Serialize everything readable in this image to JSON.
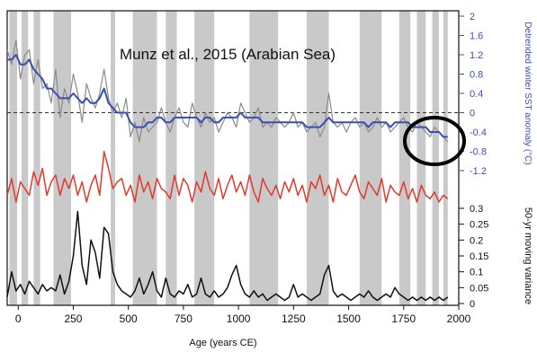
{
  "chart_data": {
    "type": "line",
    "annotation": "Munz et al., 2015  (Arabian Sea)",
    "xlabel": "Age (years CE)",
    "xlim": [
      -50,
      2000
    ],
    "xticks": [
      0,
      250,
      500,
      750,
      1000,
      1250,
      1500,
      1750,
      2000
    ],
    "shaded_intervals": [
      [
        -40,
        -5
      ],
      [
        15,
        45
      ],
      [
        70,
        100
      ],
      [
        160,
        240
      ],
      [
        420,
        440
      ],
      [
        520,
        630
      ],
      [
        670,
        720
      ],
      [
        800,
        890
      ],
      [
        1050,
        1180
      ],
      [
        1310,
        1410
      ],
      [
        1550,
        1650
      ],
      [
        1730,
        1780
      ],
      [
        1810,
        1850
      ],
      [
        1880,
        1910
      ],
      [
        1930,
        1950
      ]
    ],
    "y_right_top": {
      "label": "Detrended winter SST anomaly (°C)",
      "ylim": [
        -1.2,
        2
      ],
      "ticks": [
        "2",
        "1.6",
        "1.2",
        "0.8",
        "0.4",
        "0",
        "-0.4",
        "-0.8",
        "-1.2"
      ],
      "zero_dashed": true
    },
    "y_right_bottom": {
      "label": "50-yr moving variance",
      "ylim": [
        0,
        0.3
      ],
      "ticks": [
        "0.3",
        "0.25",
        "0.2",
        "0.15",
        "0.1",
        "0.05",
        "0"
      ]
    },
    "series": [
      {
        "role": "sst_raw",
        "color": "#8a8a8a",
        "x": [
          -50,
          -30,
          -10,
          10,
          30,
          50,
          70,
          90,
          110,
          130,
          150,
          170,
          190,
          210,
          230,
          250,
          270,
          290,
          310,
          330,
          350,
          370,
          390,
          410,
          430,
          450,
          470,
          490,
          510,
          530,
          550,
          570,
          590,
          610,
          630,
          650,
          670,
          690,
          710,
          730,
          750,
          770,
          790,
          810,
          830,
          850,
          870,
          890,
          910,
          930,
          950,
          970,
          990,
          1010,
          1030,
          1050,
          1070,
          1090,
          1110,
          1130,
          1150,
          1170,
          1190,
          1210,
          1230,
          1250,
          1270,
          1290,
          1310,
          1330,
          1350,
          1370,
          1390,
          1410,
          1430,
          1450,
          1470,
          1490,
          1510,
          1530,
          1550,
          1570,
          1590,
          1610,
          1630,
          1650,
          1670,
          1690,
          1710,
          1730,
          1750,
          1770,
          1790,
          1810,
          1830,
          1850,
          1870,
          1890,
          1910,
          1930,
          1950
        ],
        "y": [
          1.3,
          1.0,
          1.5,
          0.7,
          1.2,
          1.3,
          0.6,
          1.1,
          0.5,
          0.6,
          0.2,
          0.9,
          -0.1,
          0.5,
          0.2,
          0.8,
          0.4,
          -0.2,
          0.6,
          0.3,
          0.1,
          0.4,
          0.9,
          0.3,
          0.0,
          0.2,
          -0.1,
          0.3,
          -0.5,
          -0.2,
          -0.6,
          -0.1,
          -0.4,
          -0.3,
          -0.2,
          0.1,
          -0.2,
          -0.4,
          -0.1,
          0.1,
          -0.2,
          -0.3,
          0.2,
          -0.1,
          -0.3,
          0.0,
          -0.2,
          -0.1,
          -0.4,
          -0.2,
          0.0,
          -0.1,
          -0.3,
          0.2,
          0.0,
          -0.2,
          -0.1,
          0.1,
          -0.3,
          -0.2,
          -0.3,
          -0.1,
          -0.2,
          -0.3,
          -0.2,
          0.0,
          -0.3,
          -0.2,
          -0.4,
          -0.3,
          -0.2,
          -0.5,
          -0.3,
          0.4,
          -0.2,
          -0.3,
          -0.2,
          -0.4,
          -0.2,
          -0.1,
          -0.3,
          -0.2,
          -0.4,
          -0.3,
          -0.1,
          -0.3,
          -0.2,
          -0.4,
          -0.3,
          -0.2,
          -0.1,
          -0.3,
          -0.4,
          -0.2,
          -0.3,
          -0.4,
          -0.5,
          -0.3,
          -0.4,
          -0.5,
          -0.6
        ]
      },
      {
        "role": "sst_smoothed",
        "color": "#3b4fb0",
        "x": [
          -50,
          -30,
          -10,
          10,
          30,
          50,
          70,
          90,
          110,
          130,
          150,
          170,
          190,
          210,
          230,
          250,
          270,
          290,
          310,
          330,
          350,
          370,
          390,
          410,
          430,
          450,
          470,
          490,
          510,
          530,
          550,
          570,
          590,
          610,
          630,
          650,
          670,
          690,
          710,
          730,
          750,
          770,
          790,
          810,
          830,
          850,
          870,
          890,
          910,
          930,
          950,
          970,
          990,
          1010,
          1030,
          1050,
          1070,
          1090,
          1110,
          1130,
          1150,
          1170,
          1190,
          1210,
          1230,
          1250,
          1270,
          1290,
          1310,
          1330,
          1350,
          1370,
          1390,
          1410,
          1430,
          1450,
          1470,
          1490,
          1510,
          1530,
          1550,
          1570,
          1590,
          1610,
          1630,
          1650,
          1670,
          1690,
          1710,
          1730,
          1750,
          1770,
          1790,
          1810,
          1830,
          1850,
          1870,
          1890,
          1910,
          1930,
          1950
        ],
        "y": [
          1.1,
          1.1,
          1.2,
          1.0,
          1.0,
          1.1,
          0.9,
          0.8,
          0.7,
          0.5,
          0.5,
          0.4,
          0.3,
          0.3,
          0.3,
          0.4,
          0.3,
          0.2,
          0.3,
          0.2,
          0.2,
          0.3,
          0.5,
          0.2,
          0.1,
          0.0,
          0.0,
          0.0,
          -0.2,
          -0.3,
          -0.3,
          -0.3,
          -0.2,
          -0.2,
          -0.1,
          -0.1,
          -0.2,
          -0.2,
          -0.1,
          -0.1,
          -0.1,
          -0.1,
          -0.1,
          -0.1,
          -0.2,
          -0.1,
          -0.1,
          -0.2,
          -0.2,
          -0.1,
          -0.1,
          -0.1,
          -0.1,
          0.0,
          -0.1,
          -0.1,
          -0.1,
          -0.1,
          -0.2,
          -0.2,
          -0.2,
          -0.2,
          -0.2,
          -0.2,
          -0.2,
          -0.2,
          -0.2,
          -0.2,
          -0.3,
          -0.3,
          -0.3,
          -0.3,
          -0.2,
          -0.1,
          -0.2,
          -0.2,
          -0.2,
          -0.2,
          -0.2,
          -0.2,
          -0.2,
          -0.2,
          -0.3,
          -0.2,
          -0.2,
          -0.2,
          -0.2,
          -0.3,
          -0.2,
          -0.2,
          -0.2,
          -0.2,
          -0.3,
          -0.3,
          -0.3,
          -0.3,
          -0.4,
          -0.4,
          -0.4,
          -0.5,
          -0.5
        ]
      },
      {
        "role": "red_record",
        "color": "#e03a2c",
        "x": [
          -50,
          -30,
          -10,
          10,
          30,
          50,
          70,
          90,
          110,
          130,
          150,
          170,
          190,
          210,
          230,
          250,
          270,
          290,
          310,
          330,
          350,
          370,
          390,
          410,
          430,
          450,
          470,
          490,
          510,
          530,
          550,
          570,
          590,
          610,
          630,
          650,
          670,
          690,
          710,
          730,
          750,
          770,
          790,
          810,
          830,
          850,
          870,
          890,
          910,
          930,
          950,
          970,
          990,
          1010,
          1030,
          1050,
          1070,
          1090,
          1110,
          1130,
          1150,
          1170,
          1190,
          1210,
          1230,
          1250,
          1270,
          1290,
          1310,
          1330,
          1350,
          1370,
          1390,
          1410,
          1430,
          1450,
          1470,
          1490,
          1510,
          1530,
          1550,
          1570,
          1590,
          1610,
          1630,
          1650,
          1670,
          1690,
          1710,
          1730,
          1750,
          1770,
          1790,
          1810,
          1830,
          1850,
          1870,
          1890,
          1910,
          1930,
          1950
        ],
        "y": [
          0.3,
          0.55,
          0.2,
          0.5,
          0.4,
          0.3,
          0.65,
          0.45,
          0.7,
          0.3,
          0.5,
          0.6,
          0.3,
          0.55,
          0.4,
          0.6,
          0.3,
          0.5,
          0.2,
          0.45,
          0.6,
          0.3,
          0.95,
          0.7,
          0.4,
          0.5,
          0.55,
          0.3,
          0.45,
          0.2,
          0.6,
          0.35,
          0.5,
          0.25,
          0.55,
          0.4,
          0.35,
          0.25,
          0.6,
          0.3,
          0.55,
          0.45,
          0.2,
          0.5,
          0.35,
          0.65,
          0.4,
          0.3,
          0.55,
          0.25,
          0.45,
          0.6,
          0.35,
          0.5,
          0.3,
          0.6,
          0.35,
          0.2,
          0.55,
          0.4,
          0.3,
          0.45,
          0.25,
          0.5,
          0.35,
          0.55,
          0.3,
          0.45,
          0.2,
          0.5,
          0.4,
          0.6,
          0.3,
          0.45,
          0.2,
          0.55,
          0.35,
          0.3,
          0.45,
          0.6,
          0.35,
          0.25,
          0.5,
          0.4,
          0.3,
          0.55,
          0.2,
          0.45,
          0.35,
          0.3,
          0.5,
          0.25,
          0.4,
          0.2,
          0.45,
          0.3,
          0.25,
          0.35,
          0.2,
          0.3,
          0.25
        ]
      },
      {
        "role": "moving_variance",
        "color": "#111111",
        "x": [
          -50,
          -30,
          -10,
          10,
          30,
          50,
          70,
          90,
          110,
          130,
          150,
          170,
          190,
          210,
          230,
          250,
          270,
          290,
          310,
          330,
          350,
          370,
          390,
          410,
          430,
          450,
          470,
          490,
          510,
          530,
          550,
          570,
          590,
          610,
          630,
          650,
          670,
          690,
          710,
          730,
          750,
          770,
          790,
          810,
          830,
          850,
          870,
          890,
          910,
          930,
          950,
          970,
          990,
          1010,
          1030,
          1050,
          1070,
          1090,
          1110,
          1130,
          1150,
          1170,
          1190,
          1210,
          1230,
          1250,
          1270,
          1290,
          1310,
          1330,
          1350,
          1370,
          1390,
          1410,
          1430,
          1450,
          1470,
          1490,
          1510,
          1530,
          1550,
          1570,
          1590,
          1610,
          1630,
          1650,
          1670,
          1690,
          1710,
          1730,
          1750,
          1770,
          1790,
          1810,
          1830,
          1850,
          1870,
          1890,
          1910,
          1930,
          1950
        ],
        "y": [
          0.02,
          0.1,
          0.04,
          0.06,
          0.03,
          0.07,
          0.05,
          0.03,
          0.06,
          0.04,
          0.05,
          0.04,
          0.09,
          0.03,
          0.07,
          0.15,
          0.29,
          0.12,
          0.06,
          0.2,
          0.16,
          0.08,
          0.24,
          0.22,
          0.1,
          0.06,
          0.04,
          0.03,
          0.02,
          0.04,
          0.08,
          0.03,
          0.06,
          0.1,
          0.04,
          0.02,
          0.08,
          0.03,
          0.02,
          0.04,
          0.03,
          0.06,
          0.02,
          0.03,
          0.08,
          0.03,
          0.02,
          0.04,
          0.02,
          0.03,
          0.05,
          0.09,
          0.12,
          0.06,
          0.03,
          0.02,
          0.04,
          0.02,
          0.03,
          0.01,
          0.02,
          0.03,
          0.02,
          0.01,
          0.02,
          0.06,
          0.02,
          0.03,
          0.02,
          0.01,
          0.02,
          0.03,
          0.09,
          0.12,
          0.04,
          0.02,
          0.03,
          0.02,
          0.01,
          0.02,
          0.03,
          0.02,
          0.04,
          0.02,
          0.01,
          0.02,
          0.03,
          0.02,
          0.05,
          0.03,
          0.02,
          0.01,
          0.02,
          0.01,
          0.02,
          0.01,
          0.02,
          0.01,
          0.02,
          0.01,
          0.02
        ]
      }
    ]
  }
}
